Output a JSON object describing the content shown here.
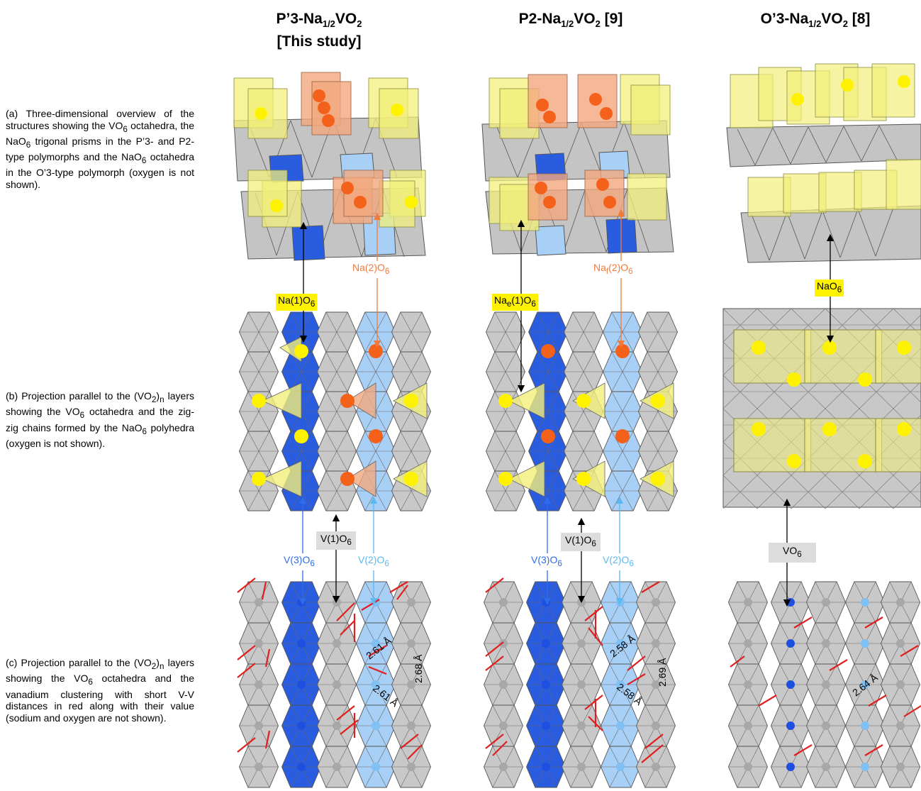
{
  "columns": [
    {
      "id": "p3",
      "title_pre": "P’3-Na",
      "title_sub1": "1/2",
      "title_mid": "VO",
      "title_sub2": "2",
      "title_post": "",
      "title_line2": "[This study]"
    },
    {
      "id": "p2",
      "title_pre": "P2-Na",
      "title_sub1": "1/2",
      "title_mid": "VO",
      "title_sub2": "2",
      "title_post": " [9]",
      "title_line2": ""
    },
    {
      "id": "o3",
      "title_pre": "O’3-Na",
      "title_sub1": "1/2",
      "title_mid": "VO",
      "title_sub2": "2",
      "title_post": " [8]",
      "title_line2": ""
    }
  ],
  "captions": {
    "a": {
      "p1": "(a) Three-dimensional overview of the structures showing the VO",
      "s1": "6",
      "p2": " octahedra, the NaO",
      "s2": "6",
      "p3": " trigonal prisms in the P’3- and P2-type polymorphs and the NaO",
      "s3": "6",
      "p4": " octahedra in the O’3-type polymorph (oxygen is not shown)."
    },
    "b": {
      "p1": "(b) Projection parallel to the (VO",
      "s1": "2",
      "p2": ")",
      "s2": "n",
      "p3": " layers showing the VO",
      "s3": "6",
      "p4": " octahedra and the zig-zig chains formed by the NaO",
      "s4": "6",
      "p5": " polyhedra (oxygen is not shown)."
    },
    "c": {
      "p1": "(c) Projection parallel to the (VO",
      "s1": "2",
      "p2": ")",
      "s2": "n",
      "p3": " layers showing the VO",
      "s3": "6",
      "p4": " octahedra and the vanadium clustering with short V-V distances in red along with their value (sodium and oxygen are not shown)."
    }
  },
  "labels": {
    "p3_na1": {
      "pre": "Na(1)O",
      "sub": "6"
    },
    "p3_na2": {
      "pre": "Na(2)O",
      "sub": "6"
    },
    "p3_v1": {
      "pre": "V(1)O",
      "sub": "6"
    },
    "p3_v3": {
      "pre": "V(3)O",
      "sub": "6"
    },
    "p3_v2": {
      "pre": "V(2)O",
      "sub": "6"
    },
    "p2_na1": {
      "pre": "Na",
      "sub1": "e",
      "mid": "(1)O",
      "sub": "6"
    },
    "p2_na2": {
      "pre": "Na",
      "sub1": "f",
      "mid": "(2)O",
      "sub": "6"
    },
    "p2_v1": {
      "pre": "V(1)O",
      "sub": "6"
    },
    "p2_v3": {
      "pre": "V(3)O",
      "sub": "6"
    },
    "p2_v2": {
      "pre": "V(2)O",
      "sub": "6"
    },
    "o3_na": {
      "pre": "NaO",
      "sub": "6"
    },
    "o3_vo": {
      "pre": "VO",
      "sub": "6"
    }
  },
  "distances": {
    "p3": [
      "2.61 Å",
      "2.68 Å",
      "2.61 Å"
    ],
    "p2": [
      "2.58 Å",
      "2.69 Å",
      "2.58 Å"
    ],
    "o3": [
      "2.64 Å"
    ]
  },
  "colors": {
    "vo6_gray": "#c8c8c8",
    "dark_blue": "#2a5ce0",
    "light_blue": "#a8cff5",
    "yellow": "#fff200",
    "yellow_poly": "#f2ef7a",
    "orange": "#f4611a",
    "orange_poly": "#f2a77e",
    "red_bond": "#e02020",
    "na2_arrow": "#f47a3a",
    "v3_arrow": "#2e6be6",
    "v2_arrow": "#5bb8f0"
  }
}
